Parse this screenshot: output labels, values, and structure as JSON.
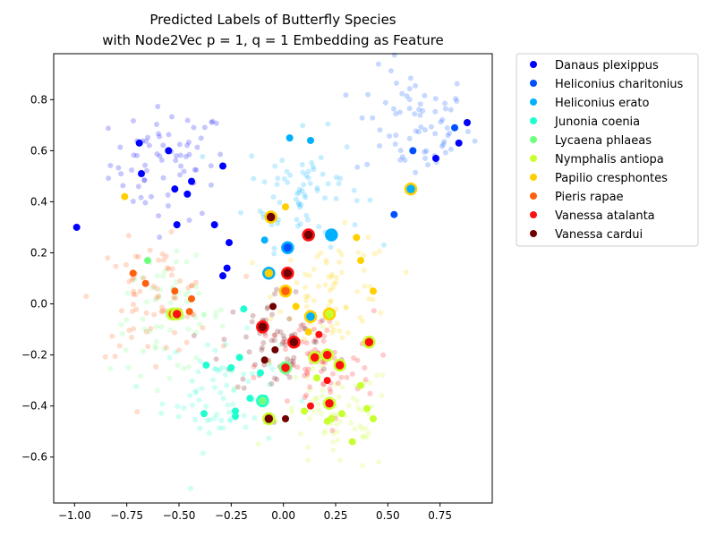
{
  "chart_data": {
    "type": "scatter",
    "title": "Predicted Labels of Butterfly Species",
    "subtitle": "with Node2Vec p = 1, q = 1 Embedding as Feature",
    "xlabel": "",
    "ylabel": "",
    "xlim": [
      -1.1,
      1.0
    ],
    "ylim": [
      -0.78,
      0.98
    ],
    "x_ticks": [
      -1.0,
      -0.75,
      -0.5,
      -0.25,
      0.0,
      0.25,
      0.5,
      0.75
    ],
    "x_tick_labels": [
      "−1.00",
      "−0.75",
      "−0.50",
      "−0.25",
      "0.00",
      "0.25",
      "0.50",
      "0.75"
    ],
    "y_ticks": [
      0.8,
      0.6,
      0.4,
      0.2,
      0.0,
      -0.2,
      -0.4,
      -0.6
    ],
    "y_tick_labels": [
      "0.8",
      "0.6",
      "0.4",
      "0.2",
      "0.0",
      "−0.2",
      "−0.4",
      "−0.6"
    ],
    "grid": false,
    "legend_position": "outside-right-top",
    "series": [
      {
        "name": "Danaus plexippus",
        "color": "#0000ff",
        "background_center": [
          -0.55,
          0.55
        ],
        "points": [
          [
            -0.99,
            0.3
          ],
          [
            -0.69,
            0.63
          ],
          [
            -0.68,
            0.51
          ],
          [
            -0.55,
            0.6
          ],
          [
            -0.52,
            0.45
          ],
          [
            -0.46,
            0.43
          ],
          [
            -0.44,
            0.48
          ],
          [
            -0.33,
            0.31
          ],
          [
            -0.29,
            0.54
          ],
          [
            -0.26,
            0.24
          ],
          [
            -0.27,
            0.14
          ],
          [
            -0.29,
            0.11
          ],
          [
            -0.51,
            0.31
          ],
          [
            0.88,
            0.71
          ],
          [
            0.84,
            0.63
          ],
          [
            0.73,
            0.57
          ]
        ]
      },
      {
        "name": "Heliconius charitonius",
        "color": "#0050ff",
        "background_center": [
          0.62,
          0.7
        ],
        "points": [
          [
            0.82,
            0.69
          ],
          [
            0.62,
            0.6
          ],
          [
            0.53,
            0.35
          ],
          [
            0.02,
            0.22
          ]
        ]
      },
      {
        "name": "Heliconius erato",
        "color": "#00b0ff",
        "background_center": [
          0.1,
          0.45
        ],
        "points": [
          [
            0.03,
            0.65
          ],
          [
            0.13,
            0.64
          ],
          [
            -0.09,
            0.25
          ],
          [
            0.23,
            0.27
          ],
          [
            -0.06,
            0.12
          ],
          [
            0.13,
            -0.05
          ],
          [
            0.02,
            0.12
          ]
        ]
      },
      {
        "name": "Junonia coenia",
        "color": "#20ffd0",
        "background_center": [
          -0.3,
          -0.35
        ],
        "points": [
          [
            -0.37,
            -0.24
          ],
          [
            -0.38,
            -0.43
          ],
          [
            -0.21,
            -0.21
          ],
          [
            -0.25,
            -0.25
          ],
          [
            -0.23,
            -0.42
          ],
          [
            -0.23,
            -0.44
          ],
          [
            -0.19,
            -0.02
          ],
          [
            -0.11,
            -0.27
          ],
          [
            -0.16,
            -0.37
          ],
          [
            -0.09,
            -0.37
          ]
        ]
      },
      {
        "name": "Lycaena phlaeas",
        "color": "#70ff80",
        "background_center": [
          -0.55,
          -0.05
        ],
        "points": [
          [
            -0.65,
            0.17
          ],
          [
            -0.54,
            -0.04
          ],
          [
            -0.51,
            -0.04
          ]
        ]
      },
      {
        "name": "Nymphalis antiopa",
        "color": "#c8ff30",
        "background_center": [
          0.25,
          -0.45
        ],
        "points": [
          [
            0.21,
            -0.46
          ],
          [
            0.28,
            -0.43
          ],
          [
            0.33,
            -0.54
          ],
          [
            0.4,
            -0.41
          ],
          [
            0.43,
            -0.45
          ],
          [
            0.16,
            -0.29
          ],
          [
            0.23,
            -0.45
          ],
          [
            0.37,
            -0.32
          ],
          [
            0.1,
            -0.42
          ],
          [
            -0.08,
            -0.45
          ]
        ]
      },
      {
        "name": "Papilio cresphontes",
        "color": "#ffd000",
        "background_center": [
          0.25,
          0.05
        ],
        "points": [
          [
            -0.76,
            0.42
          ],
          [
            0.01,
            0.38
          ],
          [
            0.35,
            0.26
          ],
          [
            0.37,
            0.17
          ],
          [
            0.43,
            0.05
          ],
          [
            0.22,
            -0.04
          ],
          [
            0.12,
            -0.11
          ],
          [
            0.06,
            -0.01
          ],
          [
            0.62,
            0.45
          ]
        ]
      },
      {
        "name": "Pieris rapae",
        "color": "#ff6010",
        "background_center": [
          -0.62,
          0.02
        ],
        "points": [
          [
            -0.72,
            0.12
          ],
          [
            -0.66,
            0.08
          ],
          [
            -0.52,
            0.05
          ],
          [
            -0.44,
            0.02
          ],
          [
            -0.45,
            -0.03
          ],
          [
            -0.5,
            -0.03
          ]
        ]
      },
      {
        "name": "Vanessa atalanta",
        "color": "#ff1010",
        "background_center": [
          0.15,
          -0.25
        ],
        "points": [
          [
            0.17,
            -0.12
          ],
          [
            0.05,
            -0.15
          ],
          [
            0.16,
            -0.21
          ],
          [
            0.21,
            -0.2
          ],
          [
            0.27,
            -0.24
          ],
          [
            0.41,
            -0.15
          ],
          [
            0.21,
            -0.3
          ],
          [
            0.22,
            -0.39
          ],
          [
            0.13,
            -0.4
          ],
          [
            -0.09,
            -0.09
          ]
        ]
      },
      {
        "name": "Vanessa cardui",
        "color": "#700000",
        "background_center": [
          -0.02,
          -0.15
        ],
        "points": [
          [
            -0.05,
            -0.01
          ],
          [
            0.01,
            0.05
          ],
          [
            -0.04,
            -0.18
          ],
          [
            -0.09,
            -0.22
          ],
          [
            0.12,
            0.27
          ],
          [
            0.01,
            -0.45
          ],
          [
            -0.07,
            -0.45
          ]
        ]
      }
    ],
    "highlighted_points": [
      {
        "x": -0.06,
        "y": 0.34,
        "fill": "#700000",
        "ring": "#ffd000"
      },
      {
        "x": -0.07,
        "y": 0.12,
        "fill": "#ffd000",
        "ring": "#00b0ff"
      },
      {
        "x": 0.02,
        "y": 0.12,
        "fill": "#700000",
        "ring": "#ff1010"
      },
      {
        "x": 0.02,
        "y": 0.22,
        "fill": "#0050ff",
        "ring": "#00b0ff"
      },
      {
        "x": 0.12,
        "y": 0.27,
        "fill": "#700000",
        "ring": "#ff1010"
      },
      {
        "x": 0.23,
        "y": 0.27,
        "fill": "#00b0ff",
        "ring": "#00b0ff"
      },
      {
        "x": 0.61,
        "y": 0.45,
        "fill": "#00b0ff",
        "ring": "#ffd000"
      },
      {
        "x": 0.01,
        "y": 0.05,
        "fill": "#ff6010",
        "ring": "#ffd000"
      },
      {
        "x": 0.13,
        "y": -0.05,
        "fill": "#00b0ff",
        "ring": "#ffd000"
      },
      {
        "x": 0.22,
        "y": -0.04,
        "fill": "#c8ff30",
        "ring": "#ffd000"
      },
      {
        "x": -0.53,
        "y": -0.04,
        "fill": "#ff6010",
        "ring": "#c8ff30"
      },
      {
        "x": -0.51,
        "y": -0.04,
        "fill": "#ff1010",
        "ring": "#c8ff30"
      },
      {
        "x": -0.1,
        "y": -0.09,
        "fill": "#700000",
        "ring": "#ff1010"
      },
      {
        "x": 0.05,
        "y": -0.15,
        "fill": "#700000",
        "ring": "#ff1010"
      },
      {
        "x": 0.15,
        "y": -0.21,
        "fill": "#ff1010",
        "ring": "#c8ff30"
      },
      {
        "x": 0.21,
        "y": -0.2,
        "fill": "#ff1010",
        "ring": "#c8ff30"
      },
      {
        "x": 0.27,
        "y": -0.24,
        "fill": "#ff1010",
        "ring": "#c8ff30"
      },
      {
        "x": 0.41,
        "y": -0.15,
        "fill": "#ff1010",
        "ring": "#c8ff30"
      },
      {
        "x": 0.01,
        "y": -0.25,
        "fill": "#ff1010",
        "ring": "#70ff80"
      },
      {
        "x": 0.22,
        "y": -0.39,
        "fill": "#ff1010",
        "ring": "#c8ff30"
      },
      {
        "x": -0.1,
        "y": -0.38,
        "fill": "#70ff80",
        "ring": "#20ffd0"
      },
      {
        "x": -0.07,
        "y": -0.45,
        "fill": "#700000",
        "ring": "#c8ff30"
      }
    ]
  }
}
